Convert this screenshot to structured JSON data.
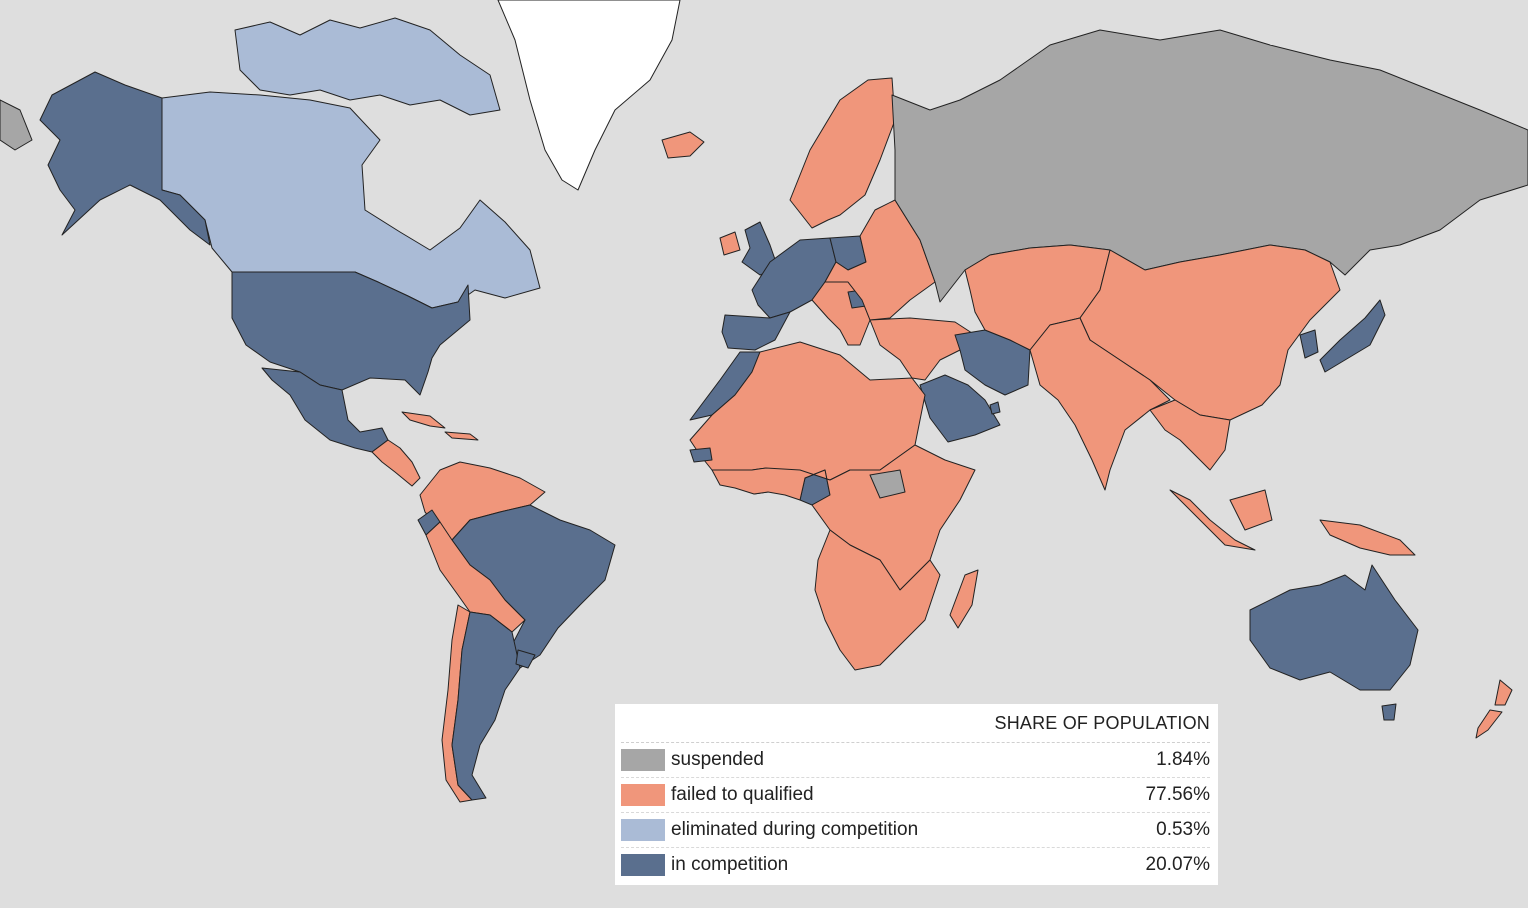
{
  "colors": {
    "ocean": "#dedede",
    "suspended": "#a6a6a6",
    "failed": "#f0967b",
    "eliminated": "#aabbd6",
    "in_competition": "#5a6f8e",
    "uncolored": "#ffffff",
    "border": "#222222"
  },
  "legend": {
    "header": "SHARE OF POPULATION",
    "items": [
      {
        "key": "suspended",
        "label": "suspended",
        "value": "1.84%",
        "color": "#a6a6a6"
      },
      {
        "key": "failed",
        "label": "failed to qualified",
        "value": "77.56%",
        "color": "#f0967b"
      },
      {
        "key": "eliminated",
        "label": "eliminated during competition",
        "value": "0.53%",
        "color": "#aabbd6"
      },
      {
        "key": "in_competition",
        "label": "in competition",
        "value": "20.07%",
        "color": "#5a6f8e"
      }
    ]
  },
  "regions": [
    {
      "id": "alaska",
      "status": "in_competition"
    },
    {
      "id": "usa",
      "status": "in_competition"
    },
    {
      "id": "canada",
      "status": "eliminated"
    },
    {
      "id": "canada-arctic-islands",
      "status": "eliminated"
    },
    {
      "id": "greenland",
      "status": "uncolored"
    },
    {
      "id": "mexico",
      "status": "in_competition"
    },
    {
      "id": "central-america",
      "status": "failed"
    },
    {
      "id": "caribbean",
      "status": "failed"
    },
    {
      "id": "northern-south-america",
      "status": "failed"
    },
    {
      "id": "brazil",
      "status": "in_competition"
    },
    {
      "id": "ecuador",
      "status": "in_competition"
    },
    {
      "id": "peru-bolivia",
      "status": "failed"
    },
    {
      "id": "chile",
      "status": "failed"
    },
    {
      "id": "argentina",
      "status": "in_competition"
    },
    {
      "id": "uruguay",
      "status": "in_competition"
    },
    {
      "id": "iceland",
      "status": "failed"
    },
    {
      "id": "uk",
      "status": "in_competition"
    },
    {
      "id": "ireland",
      "status": "failed"
    },
    {
      "id": "scandinavia",
      "status": "failed"
    },
    {
      "id": "france-benelux-germany",
      "status": "in_competition"
    },
    {
      "id": "spain-portugal",
      "status": "in_competition"
    },
    {
      "id": "poland",
      "status": "in_competition"
    },
    {
      "id": "eastern-europe",
      "status": "failed"
    },
    {
      "id": "italy-balkans",
      "status": "failed"
    },
    {
      "id": "serbia",
      "status": "in_competition"
    },
    {
      "id": "russia",
      "status": "suspended"
    },
    {
      "id": "turkey-middle-east",
      "status": "failed"
    },
    {
      "id": "iran",
      "status": "in_competition"
    },
    {
      "id": "saudi-arabia",
      "status": "in_competition"
    },
    {
      "id": "qatar",
      "status": "in_competition"
    },
    {
      "id": "north-africa",
      "status": "failed"
    },
    {
      "id": "morocco",
      "status": "in_competition"
    },
    {
      "id": "senegal",
      "status": "in_competition"
    },
    {
      "id": "ghana",
      "status": "in_competition"
    },
    {
      "id": "cameroon",
      "status": "in_competition"
    },
    {
      "id": "west-central-africa",
      "status": "failed"
    },
    {
      "id": "south-sudan",
      "status": "suspended"
    },
    {
      "id": "southern-africa",
      "status": "failed"
    },
    {
      "id": "madagascar",
      "status": "failed"
    },
    {
      "id": "central-asia",
      "status": "failed"
    },
    {
      "id": "china-mongolia",
      "status": "failed"
    },
    {
      "id": "india-south-asia",
      "status": "failed"
    },
    {
      "id": "southeast-asia",
      "status": "failed"
    },
    {
      "id": "korea",
      "status": "in_competition"
    },
    {
      "id": "japan",
      "status": "in_competition"
    },
    {
      "id": "indonesia-png",
      "status": "failed"
    },
    {
      "id": "australia",
      "status": "in_competition"
    },
    {
      "id": "tasmania",
      "status": "in_competition"
    },
    {
      "id": "new-zealand",
      "status": "failed"
    },
    {
      "id": "chukotka",
      "status": "suspended"
    }
  ]
}
